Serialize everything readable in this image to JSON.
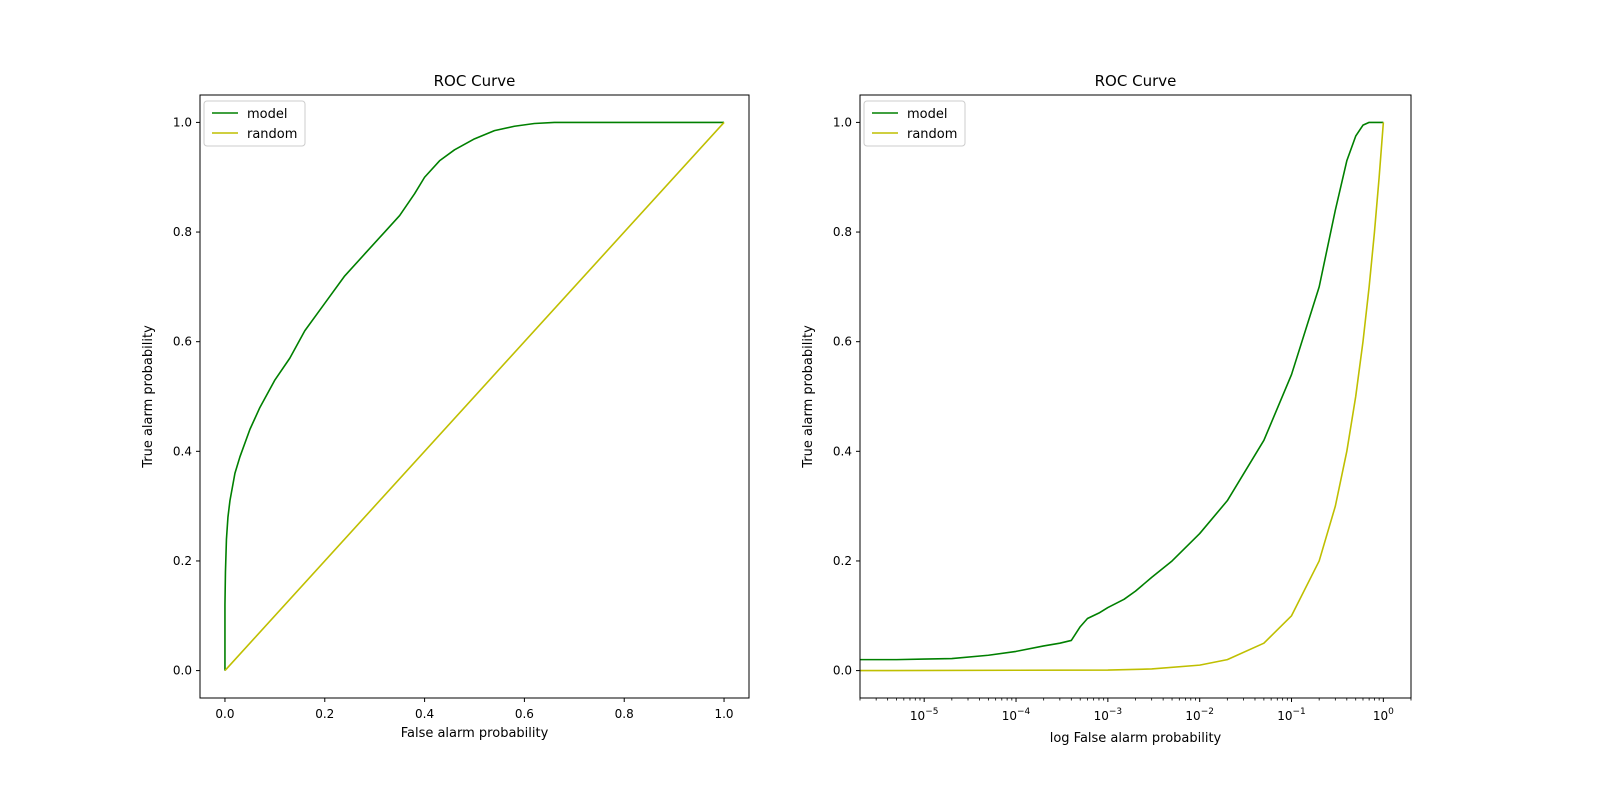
{
  "chart_data": [
    {
      "type": "line",
      "title": "ROC Curve",
      "xlabel": "False alarm probability",
      "ylabel": "True alarm probability",
      "xscale": "linear",
      "xlim": [
        -0.05,
        1.05
      ],
      "ylim": [
        -0.05,
        1.05
      ],
      "xticks": [
        0.0,
        0.2,
        0.4,
        0.6,
        0.8,
        1.0
      ],
      "xtick_labels": [
        "0.0",
        "0.2",
        "0.4",
        "0.6",
        "0.8",
        "1.0"
      ],
      "yticks": [
        0.0,
        0.2,
        0.4,
        0.6,
        0.8,
        1.0
      ],
      "ytick_labels": [
        "0.0",
        "0.2",
        "0.4",
        "0.6",
        "0.8",
        "1.0"
      ],
      "grid": false,
      "legend_position": "top-left",
      "series": [
        {
          "name": "model",
          "color": "#008000",
          "x": [
            0.0,
            0.0,
            0.001,
            0.003,
            0.006,
            0.01,
            0.02,
            0.03,
            0.05,
            0.07,
            0.1,
            0.13,
            0.16,
            0.2,
            0.24,
            0.28,
            0.32,
            0.35,
            0.38,
            0.4,
            0.43,
            0.46,
            0.5,
            0.54,
            0.58,
            0.62,
            0.66,
            0.7,
            0.8,
            0.9,
            1.0
          ],
          "y": [
            0.0,
            0.12,
            0.18,
            0.24,
            0.28,
            0.31,
            0.36,
            0.39,
            0.44,
            0.48,
            0.53,
            0.57,
            0.62,
            0.67,
            0.72,
            0.76,
            0.8,
            0.83,
            0.87,
            0.9,
            0.93,
            0.95,
            0.97,
            0.985,
            0.993,
            0.998,
            1.0,
            1.0,
            1.0,
            1.0,
            1.0
          ]
        },
        {
          "name": "random",
          "color": "#bfbf00",
          "x": [
            0.0,
            1.0
          ],
          "y": [
            0.0,
            1.0
          ]
        }
      ]
    },
    {
      "type": "line",
      "title": "ROC Curve",
      "xlabel": "log False alarm probability",
      "ylabel": "True alarm probability",
      "xscale": "log",
      "xlim": [
        2e-06,
        2
      ],
      "ylim": [
        -0.05,
        1.05
      ],
      "xtick_exponents": [
        "-5",
        "-4",
        "-3",
        "-2",
        "-1",
        "0"
      ],
      "xtick_base": "10",
      "yticks": [
        0.0,
        0.2,
        0.4,
        0.6,
        0.8,
        1.0
      ],
      "ytick_labels": [
        "0.0",
        "0.2",
        "0.4",
        "0.6",
        "0.8",
        "1.0"
      ],
      "grid": false,
      "legend_position": "top-left",
      "series": [
        {
          "name": "model",
          "color": "#008000",
          "x": [
            2e-06,
            5e-06,
            1e-05,
            2e-05,
            5e-05,
            0.0001,
            0.0002,
            0.0003,
            0.0004,
            0.0005,
            0.0006,
            0.0008,
            0.001,
            0.0015,
            0.002,
            0.003,
            0.005,
            0.01,
            0.02,
            0.05,
            0.1,
            0.2,
            0.3,
            0.4,
            0.5,
            0.6,
            0.7,
            1.0
          ],
          "y": [
            0.02,
            0.02,
            0.021,
            0.022,
            0.028,
            0.035,
            0.045,
            0.05,
            0.055,
            0.08,
            0.095,
            0.105,
            0.115,
            0.13,
            0.145,
            0.17,
            0.2,
            0.25,
            0.31,
            0.42,
            0.54,
            0.7,
            0.84,
            0.93,
            0.975,
            0.995,
            1.0,
            1.0
          ]
        },
        {
          "name": "random",
          "color": "#bfbf00",
          "x": [
            2e-06,
            0.001,
            0.003,
            0.01,
            0.02,
            0.05,
            0.1,
            0.2,
            0.3,
            0.4,
            0.5,
            0.6,
            0.7,
            0.8,
            0.9,
            1.0
          ],
          "y": [
            0.0,
            0.001,
            0.003,
            0.01,
            0.02,
            0.05,
            0.1,
            0.2,
            0.3,
            0.4,
            0.5,
            0.6,
            0.7,
            0.8,
            0.9,
            1.0
          ]
        }
      ]
    }
  ]
}
